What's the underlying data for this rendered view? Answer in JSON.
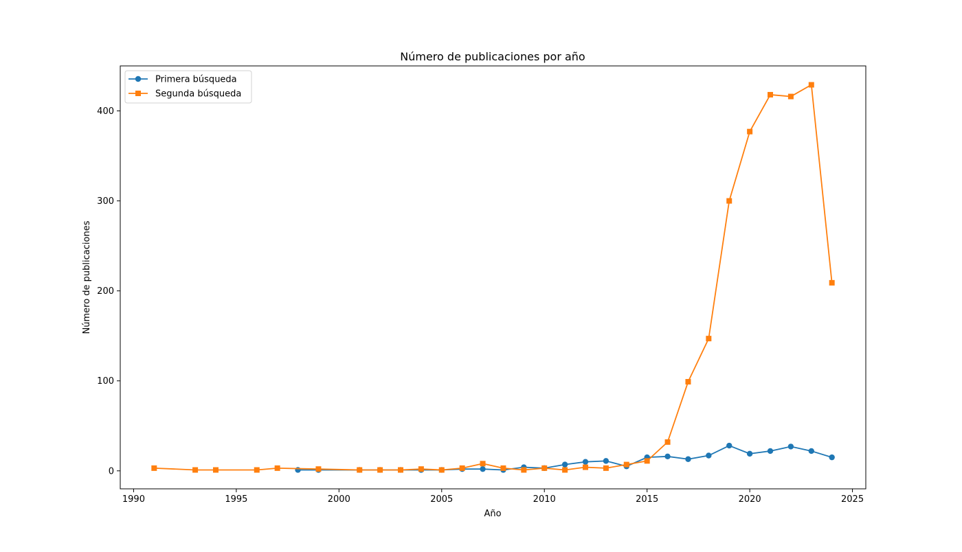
{
  "chart_data": {
    "type": "line",
    "title": "Número de publicaciones por año",
    "xlabel": "Año",
    "ylabel": "Número de publicaciones",
    "xlim": [
      1989.35,
      2025.65
    ],
    "ylim": [
      -20,
      450
    ],
    "xticks": [
      1990,
      1995,
      2000,
      2005,
      2010,
      2015,
      2020,
      2025
    ],
    "yticks": [
      0,
      100,
      200,
      300,
      400
    ],
    "grid": false,
    "legend_position": "top-left",
    "series": [
      {
        "name": "Primera búsqueda",
        "color": "#1f77b4",
        "marker": "circle",
        "x": [
          1998,
          1999,
          2001,
          2002,
          2003,
          2004,
          2005,
          2006,
          2007,
          2008,
          2009,
          2010,
          2011,
          2012,
          2013,
          2014,
          2015,
          2016,
          2017,
          2018,
          2019,
          2020,
          2021,
          2022,
          2023,
          2024
        ],
        "y": [
          1,
          1,
          1,
          1,
          1,
          1,
          1,
          2,
          2,
          1,
          4,
          3,
          7,
          10,
          11,
          5,
          15,
          16,
          13,
          17,
          28,
          19,
          22,
          27,
          22,
          15
        ]
      },
      {
        "name": "Segunda búsqueda",
        "color": "#ff7f0e",
        "marker": "square",
        "x": [
          1991,
          1993,
          1994,
          1996,
          1997,
          1999,
          2001,
          2002,
          2003,
          2004,
          2005,
          2006,
          2007,
          2008,
          2009,
          2010,
          2011,
          2012,
          2013,
          2014,
          2015,
          2016,
          2017,
          2018,
          2019,
          2020,
          2021,
          2022,
          2023,
          2024
        ],
        "y": [
          3,
          1,
          1,
          1,
          3,
          2,
          1,
          1,
          1,
          2,
          1,
          3,
          8,
          3,
          1,
          3,
          1,
          4,
          3,
          7,
          11,
          32,
          99,
          147,
          300,
          377,
          418,
          416,
          429,
          209
        ]
      }
    ]
  }
}
